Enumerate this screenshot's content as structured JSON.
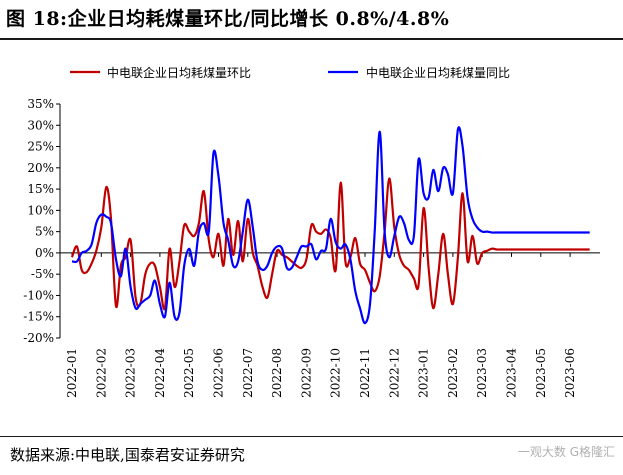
{
  "title": "图 18:企业日均耗煤量环比/同比增长 0.8%/4.8%",
  "source": "数据来源:中电联,国泰君安证券研究",
  "watermark": "一观大数 G格隆汇",
  "colors": {
    "series_mom": "#c00000",
    "series_yoy": "#0000ff"
  },
  "chart_data": {
    "type": "line",
    "title": "",
    "xlabel": "",
    "ylabel": "",
    "ylim": [
      -20,
      35
    ],
    "yticks": [
      "35%",
      "30%",
      "25%",
      "20%",
      "15%",
      "10%",
      "5%",
      "0%",
      "-5%",
      "-10%",
      "-15%",
      "-20%"
    ],
    "ytick_values": [
      35,
      30,
      25,
      20,
      15,
      10,
      5,
      0,
      -5,
      -10,
      -15,
      -20
    ],
    "xticks": [
      "2022-01",
      "2022-02",
      "2022-03",
      "2022-04",
      "2022-05",
      "2022-06",
      "2022-07",
      "2022-08",
      "2022-09",
      "2022-10",
      "2022-11",
      "2022-12",
      "2023-01",
      "2023-02",
      "2023-03",
      "2023-04",
      "2023-05",
      "2023-06"
    ],
    "legend_position": "top",
    "grid": false,
    "series": [
      {
        "name": "中电联企业日均耗煤量环比",
        "color": "#c00000",
        "x": [
          0.0,
          0.17,
          0.33,
          0.5,
          0.67,
          0.83,
          1.0,
          1.17,
          1.33,
          1.5,
          1.67,
          1.83,
          2.0,
          2.17,
          2.33,
          2.5,
          2.67,
          2.83,
          3.0,
          3.17,
          3.33,
          3.5,
          3.67,
          3.83,
          4.0,
          4.17,
          4.33,
          4.5,
          4.67,
          4.83,
          5.0,
          5.17,
          5.33,
          5.5,
          5.67,
          5.83,
          6.0,
          6.17,
          6.33,
          6.5,
          6.67,
          6.83,
          7.0,
          7.17,
          7.33,
          7.5,
          7.67,
          7.83,
          8.0,
          8.17,
          8.33,
          8.5,
          8.67,
          8.83,
          9.0,
          9.17,
          9.33,
          9.5,
          9.67,
          9.83,
          10.0,
          10.17,
          10.33,
          10.5,
          10.67,
          10.83,
          11.0,
          11.17,
          11.33,
          11.5,
          11.67,
          11.83,
          12.0,
          12.17,
          12.33,
          12.5,
          12.67,
          12.83,
          13.0,
          13.17,
          13.33,
          13.5,
          13.67,
          13.83,
          14.0,
          14.17,
          14.33,
          14.5,
          14.67,
          14.83,
          15.0,
          15.17,
          15.33,
          15.5,
          15.67,
          15.83,
          16.0,
          16.17,
          16.33,
          16.5,
          16.67,
          16.83,
          17.0,
          17.17,
          17.33,
          17.5,
          17.67
        ],
        "values": [
          -1.0,
          1.5,
          -4.0,
          -4.5,
          -2.5,
          0.5,
          6.0,
          15.5,
          8.0,
          -12.5,
          -3.0,
          -1.0,
          3.0,
          -10.5,
          -12.0,
          -5.0,
          -2.5,
          -3.0,
          -8.0,
          -13.0,
          1.0,
          -8.0,
          -2.0,
          6.5,
          5.0,
          4.0,
          7.0,
          14.5,
          3.0,
          -1.0,
          4.5,
          -3.0,
          8.0,
          -0.5,
          7.5,
          -2.0,
          8.0,
          0.0,
          -3.0,
          -8.0,
          -10.5,
          -5.0,
          0.5,
          -0.5,
          -1.0,
          -2.0,
          -3.0,
          -3.5,
          -1.5,
          6.5,
          5.0,
          4.5,
          5.5,
          3.5,
          -4.0,
          16.5,
          -2.0,
          -1.0,
          3.5,
          -2.5,
          -4.0,
          -7.0,
          -9.0,
          -5.5,
          5.0,
          17.5,
          6.0,
          -0.5,
          -3.0,
          -4.0,
          -6.0,
          -7.5,
          10.5,
          -3.5,
          -13.0,
          -5.0,
          4.5,
          -5.0,
          -12.0,
          -1.0,
          14.0,
          -2.0,
          4.0,
          -2.5,
          0.0,
          0.5,
          1.0,
          0.8,
          0.8,
          0.8,
          0.8,
          0.8,
          0.8,
          0.8,
          0.8,
          0.8,
          0.8,
          0.8,
          0.8,
          0.8,
          0.8,
          0.8,
          0.8,
          0.8,
          0.8,
          0.8,
          0.8
        ]
      },
      {
        "name": "中电联企业日均耗煤量同比",
        "color": "#0000ff",
        "x": [
          0.0,
          0.17,
          0.33,
          0.5,
          0.67,
          0.83,
          1.0,
          1.17,
          1.33,
          1.5,
          1.67,
          1.83,
          2.0,
          2.17,
          2.33,
          2.5,
          2.67,
          2.83,
          3.0,
          3.17,
          3.33,
          3.5,
          3.67,
          3.83,
          4.0,
          4.17,
          4.33,
          4.5,
          4.67,
          4.83,
          5.0,
          5.17,
          5.33,
          5.5,
          5.67,
          5.83,
          6.0,
          6.17,
          6.33,
          6.5,
          6.67,
          6.83,
          7.0,
          7.17,
          7.33,
          7.5,
          7.67,
          7.83,
          8.0,
          8.17,
          8.33,
          8.5,
          8.67,
          8.83,
          9.0,
          9.17,
          9.33,
          9.5,
          9.67,
          9.83,
          10.0,
          10.17,
          10.33,
          10.5,
          10.67,
          10.83,
          11.0,
          11.17,
          11.33,
          11.5,
          11.67,
          11.83,
          12.0,
          12.17,
          12.33,
          12.5,
          12.67,
          12.83,
          13.0,
          13.17,
          13.33,
          13.5,
          13.67,
          13.83,
          14.0,
          14.17,
          14.33,
          14.5,
          14.67,
          14.83,
          15.0,
          15.17,
          15.33,
          15.5,
          15.67,
          15.83,
          16.0,
          16.17,
          16.33,
          16.5,
          16.67,
          16.83,
          17.0,
          17.17,
          17.33,
          17.5,
          17.67
        ],
        "values": [
          -2.0,
          -2.0,
          0.0,
          0.5,
          2.0,
          7.0,
          9.0,
          8.5,
          7.0,
          -1.5,
          -5.5,
          1.0,
          -8.0,
          -13.0,
          -12.0,
          -11.0,
          -10.0,
          -6.5,
          -12.0,
          -15.0,
          -7.0,
          -15.0,
          -14.0,
          -3.0,
          1.0,
          -3.0,
          5.0,
          7.0,
          5.0,
          23.5,
          18.0,
          7.0,
          3.0,
          -3.0,
          -2.0,
          5.0,
          12.5,
          6.0,
          -2.0,
          -4.0,
          -3.0,
          0.0,
          1.5,
          1.0,
          -3.5,
          -3.5,
          -1.0,
          1.5,
          1.5,
          2.0,
          -1.5,
          0.5,
          1.0,
          8.0,
          2.5,
          1.0,
          2.0,
          -1.5,
          -9.0,
          -13.0,
          -16.5,
          -12.0,
          5.0,
          28.5,
          5.0,
          -1.0,
          4.0,
          8.5,
          7.0,
          3.0,
          4.0,
          22.0,
          14.0,
          13.0,
          19.5,
          14.5,
          20.0,
          18.5,
          14.0,
          29.0,
          25.0,
          13.0,
          8.0,
          6.0,
          5.0,
          5.0,
          4.8,
          4.8,
          4.8,
          4.8,
          4.8,
          4.8,
          4.8,
          4.8,
          4.8,
          4.8,
          4.8,
          4.8,
          4.8,
          4.8,
          4.8,
          4.8,
          4.8,
          4.8,
          4.8,
          4.8,
          4.8
        ]
      }
    ]
  }
}
